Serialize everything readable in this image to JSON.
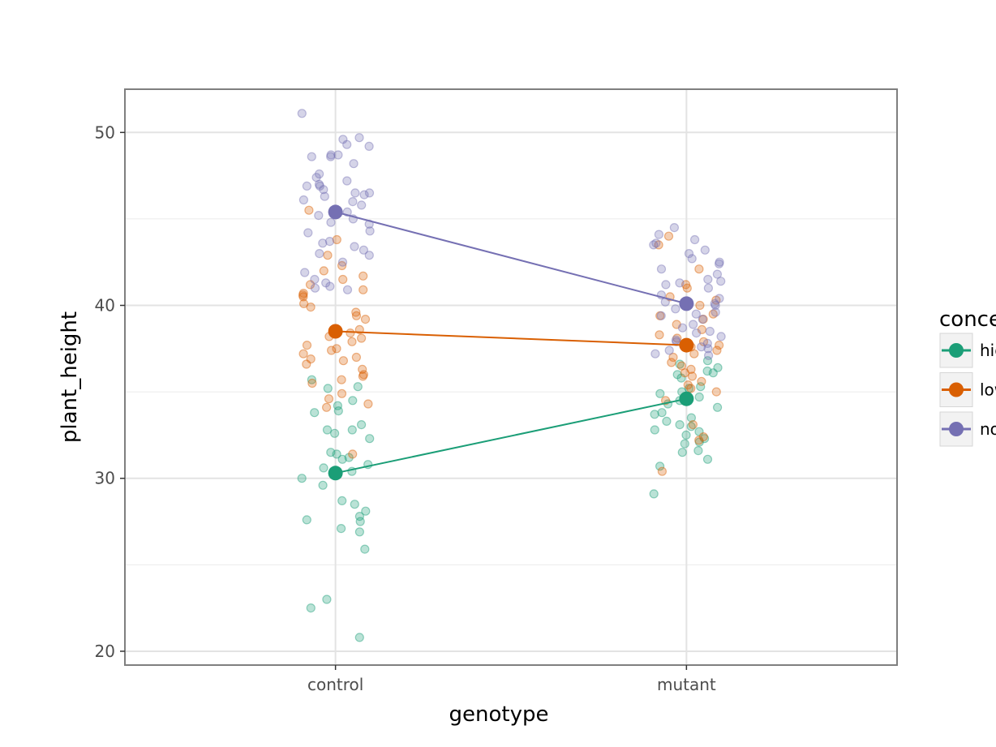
{
  "chart_data": {
    "type": "scatter",
    "title": "",
    "xlabel": "genotype",
    "ylabel": "plant_height",
    "categories": [
      "control",
      "mutant"
    ],
    "ylim": [
      19.2,
      52.5
    ],
    "yticks": [
      20,
      30,
      40,
      50
    ],
    "grid": true,
    "legend": {
      "title": "concentration",
      "position": "right",
      "entries": [
        "high",
        "low",
        "none"
      ]
    },
    "colors": {
      "high": "#1b9e77",
      "low": "#d95f02",
      "none": "#7570b3"
    },
    "series": [
      {
        "name": "high",
        "means": [
          30.3,
          34.6
        ],
        "points": {
          "control": [
            34.2,
            33.9,
            33.1,
            32.8,
            32.3,
            31.5,
            31.4,
            31.2,
            31.1,
            30.8,
            30.6,
            30.4,
            30.0,
            29.6,
            28.7,
            28.5,
            28.1,
            27.8,
            27.6,
            27.5,
            27.1,
            26.9,
            25.9,
            23.0,
            22.5,
            20.8,
            35.7,
            35.3,
            35.2,
            34.5,
            33.8,
            32.8,
            32.6
          ],
          "mutant": [
            35.3,
            35.2,
            35.0,
            34.9,
            34.7,
            34.5,
            34.1,
            33.8,
            33.7,
            33.5,
            33.3,
            33.1,
            33.0,
            32.8,
            32.7,
            32.5,
            32.3,
            32.1,
            32.0,
            31.6,
            31.5,
            31.1,
            30.7,
            29.1,
            36.1,
            36.0,
            35.8,
            36.2,
            36.4,
            36.6,
            36.8,
            34.3
          ]
        }
      },
      {
        "name": "low",
        "means": [
          38.5,
          37.7
        ],
        "points": {
          "control": [
            45.5,
            43.8,
            42.9,
            42.3,
            42.0,
            41.7,
            41.5,
            41.2,
            40.9,
            40.7,
            40.6,
            40.5,
            40.1,
            39.9,
            39.6,
            39.4,
            39.2,
            38.6,
            38.4,
            38.2,
            38.1,
            37.9,
            37.7,
            37.5,
            37.4,
            37.2,
            37.0,
            36.9,
            36.8,
            36.6,
            36.3,
            36.0,
            35.9,
            35.7,
            35.5,
            34.9,
            34.6,
            34.3,
            34.1,
            31.4
          ],
          "mutant": [
            44.0,
            43.5,
            42.1,
            41.2,
            41.0,
            40.5,
            40.3,
            40.0,
            39.5,
            39.4,
            39.2,
            38.9,
            38.6,
            38.3,
            38.1,
            37.9,
            37.7,
            37.6,
            37.4,
            37.2,
            37.0,
            36.7,
            36.5,
            36.3,
            36.1,
            35.9,
            35.6,
            35.4,
            35.2,
            35.0,
            34.5,
            33.1,
            32.4,
            32.2,
            30.4
          ]
        }
      },
      {
        "name": "none",
        "means": [
          45.4,
          40.1
        ],
        "points": {
          "control": [
            51.1,
            49.7,
            49.6,
            49.3,
            49.2,
            48.7,
            48.6,
            48.2,
            47.6,
            47.4,
            47.2,
            46.9,
            46.7,
            46.5,
            46.4,
            46.3,
            46.1,
            46.0,
            45.8,
            45.4,
            45.2,
            45.0,
            44.8,
            44.7,
            44.3,
            44.2,
            43.7,
            43.6,
            43.4,
            43.2,
            43.0,
            42.9,
            42.5,
            41.9,
            41.5,
            41.3,
            41.1,
            41.0,
            40.9,
            46.5,
            46.9,
            47.0,
            48.6,
            48.7
          ],
          "mutant": [
            44.5,
            44.1,
            43.8,
            43.6,
            43.5,
            43.2,
            43.0,
            42.7,
            42.5,
            42.4,
            42.1,
            41.8,
            41.5,
            41.4,
            41.3,
            41.2,
            41.0,
            40.6,
            40.4,
            40.2,
            40.1,
            39.8,
            39.6,
            39.4,
            39.2,
            38.9,
            38.7,
            38.4,
            38.2,
            38.0,
            37.8,
            37.6,
            37.4,
            37.2,
            37.1,
            39.5,
            38.5,
            37.9,
            37.5,
            40.0
          ]
        }
      }
    ]
  }
}
